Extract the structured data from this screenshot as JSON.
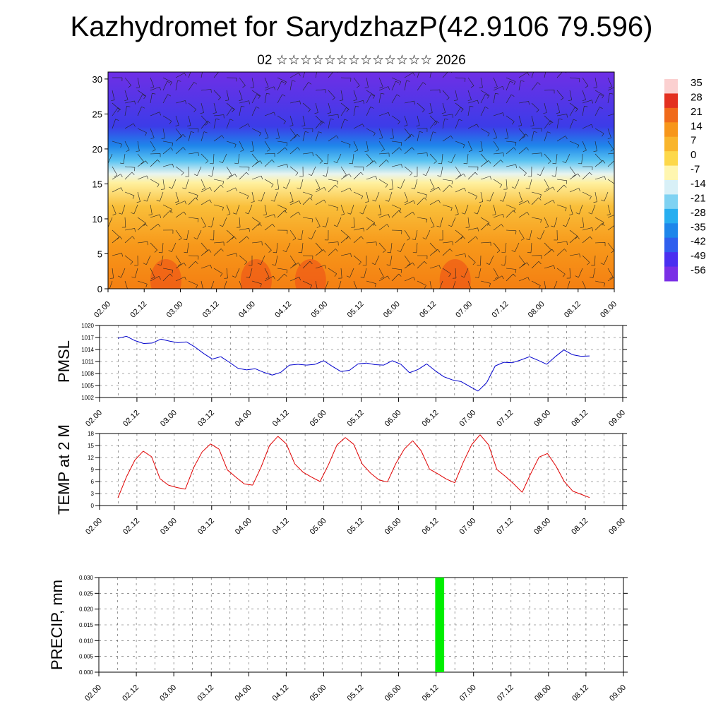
{
  "title": "Kazhydromet for SarydzhazP(42.9106 79.596)",
  "subtitle": "02 ☆☆☆☆☆☆☆☆☆☆☆☆☆ 2026",
  "chart_data": [
    {
      "type": "heatmap",
      "name": "vertical temperature and wind cross-section",
      "ylim": [
        0,
        31
      ],
      "yticks": [
        "0",
        "5",
        "10",
        "15",
        "20",
        "25",
        "30"
      ],
      "xticks": [
        "02.00",
        "02.12",
        "03.00",
        "03.12",
        "04.00",
        "04.12",
        "05.00",
        "05.12",
        "06.00",
        "06.12",
        "07.00",
        "07.12",
        "08.00",
        "08.12",
        "09.00"
      ],
      "colorbar": {
        "labels": [
          "35",
          "28",
          "21",
          "14",
          "7",
          "0",
          "-7",
          "-14",
          "-21",
          "-28",
          "-35",
          "-42",
          "-49",
          "-56"
        ],
        "values": [
          35,
          28,
          21,
          14,
          7,
          0,
          -7,
          -14,
          -21,
          -28,
          -35,
          -42,
          -49,
          -56
        ],
        "colors": [
          "#fbd0d0",
          "#e33020",
          "#f06a1a",
          "#f7961a",
          "#f9b52c",
          "#fdd84a",
          "#fff6b0",
          "#d8f0f7",
          "#7fd2f2",
          "#27aef0",
          "#1e86ea",
          "#2f5fee",
          "#4a2ff0",
          "#7a2fe6"
        ]
      },
      "layers": [
        {
          "z_from": 0,
          "z_to": 4,
          "temp": 14
        },
        {
          "z_from": 4,
          "z_to": 10,
          "temp": 5
        },
        {
          "z_from": 10,
          "z_to": 15,
          "temp": -5
        },
        {
          "z_from": 15,
          "z_to": 18,
          "temp": -20
        },
        {
          "z_from": 18,
          "z_to": 22,
          "temp": -40
        },
        {
          "z_from": 22,
          "z_to": 31,
          "temp": -55
        }
      ]
    },
    {
      "type": "line",
      "name": "PMSL",
      "ylabel": "PMSL",
      "ylim": [
        1002,
        1020
      ],
      "yticks": [
        "1002",
        "1005",
        "1008",
        "1011",
        "1014",
        "1017",
        "1020"
      ],
      "xticks": [
        "02.00",
        "02.12",
        "03.00",
        "03.12",
        "04.00",
        "04.12",
        "05.00",
        "05.12",
        "06.00",
        "06.12",
        "07.00",
        "07.12",
        "08.00",
        "08.12",
        "09.00"
      ],
      "color": "#0000cc",
      "values": [
        1016.8,
        1017.3,
        1016.2,
        1015.5,
        1015.6,
        1016.6,
        1016.1,
        1015.7,
        1015.9,
        1014.6,
        1013,
        1011.6,
        1012.2,
        1010.8,
        1009.3,
        1008.9,
        1009.2,
        1008.3,
        1007.6,
        1008.3,
        1010.1,
        1010.3,
        1010.1,
        1010.3,
        1011.2,
        1009.8,
        1008.5,
        1008.8,
        1010.4,
        1010.6,
        1010.2,
        1010.1,
        1011.2,
        1010.3,
        1008.2,
        1009,
        1010.4,
        1008.7,
        1007.2,
        1006.4,
        1006,
        1004.8,
        1003.6,
        1005.7,
        1009.9,
        1010.8,
        1010.7,
        1011.4,
        1012.2,
        1011.3,
        1010.3,
        1012.2,
        1013.9,
        1012.7,
        1012.3,
        1012.4
      ]
    },
    {
      "type": "line",
      "name": "TEMP at 2 M",
      "ylabel": "TEMP at 2 M",
      "ylim": [
        0,
        18
      ],
      "yticks": [
        "0",
        "3",
        "6",
        "9",
        "12",
        "15",
        "18"
      ],
      "xticks": [
        "02.00",
        "02.12",
        "03.00",
        "03.12",
        "04.00",
        "04.12",
        "05.00",
        "05.12",
        "06.00",
        "06.12",
        "07.00",
        "07.12",
        "08.00",
        "08.12",
        "09.00"
      ],
      "color": "#e00000",
      "values": [
        1.9,
        7.1,
        11.3,
        13.6,
        12.2,
        6.7,
        5.1,
        4.5,
        4.1,
        9.5,
        13.4,
        15.4,
        14.1,
        8.9,
        7.1,
        5.4,
        5.1,
        9.6,
        15,
        17.3,
        15.4,
        10.4,
        8.3,
        7.1,
        6,
        10.2,
        15.1,
        17,
        15.3,
        10.4,
        8.1,
        6.4,
        5.9,
        10.5,
        14.1,
        16.2,
        13.7,
        9.1,
        7.9,
        6.6,
        5.7,
        10.8,
        15.2,
        17.7,
        15.2,
        9,
        7.3,
        5.4,
        3.3,
        7.9,
        12.1,
        13,
        9.9,
        6,
        3.6,
        2.8,
        2
      ]
    },
    {
      "type": "bar",
      "name": "PRECIP, mm",
      "ylabel": "PRECIP, mm",
      "ylim": [
        0,
        0.03
      ],
      "yticks": [
        "0.000",
        "0.005",
        "0.010",
        "0.015",
        "0.020",
        "0.025",
        "0.030"
      ],
      "xticks": [
        "02.00",
        "02.12",
        "03.00",
        "03.12",
        "04.00",
        "04.12",
        "05.00",
        "05.12",
        "06.00",
        "06.12",
        "07.00",
        "07.12",
        "08.00",
        "08.12",
        "09.00"
      ],
      "color": "#00ee00",
      "bars": [
        {
          "x_from": 108,
          "x_to": 111,
          "value": 0.03
        }
      ]
    }
  ]
}
